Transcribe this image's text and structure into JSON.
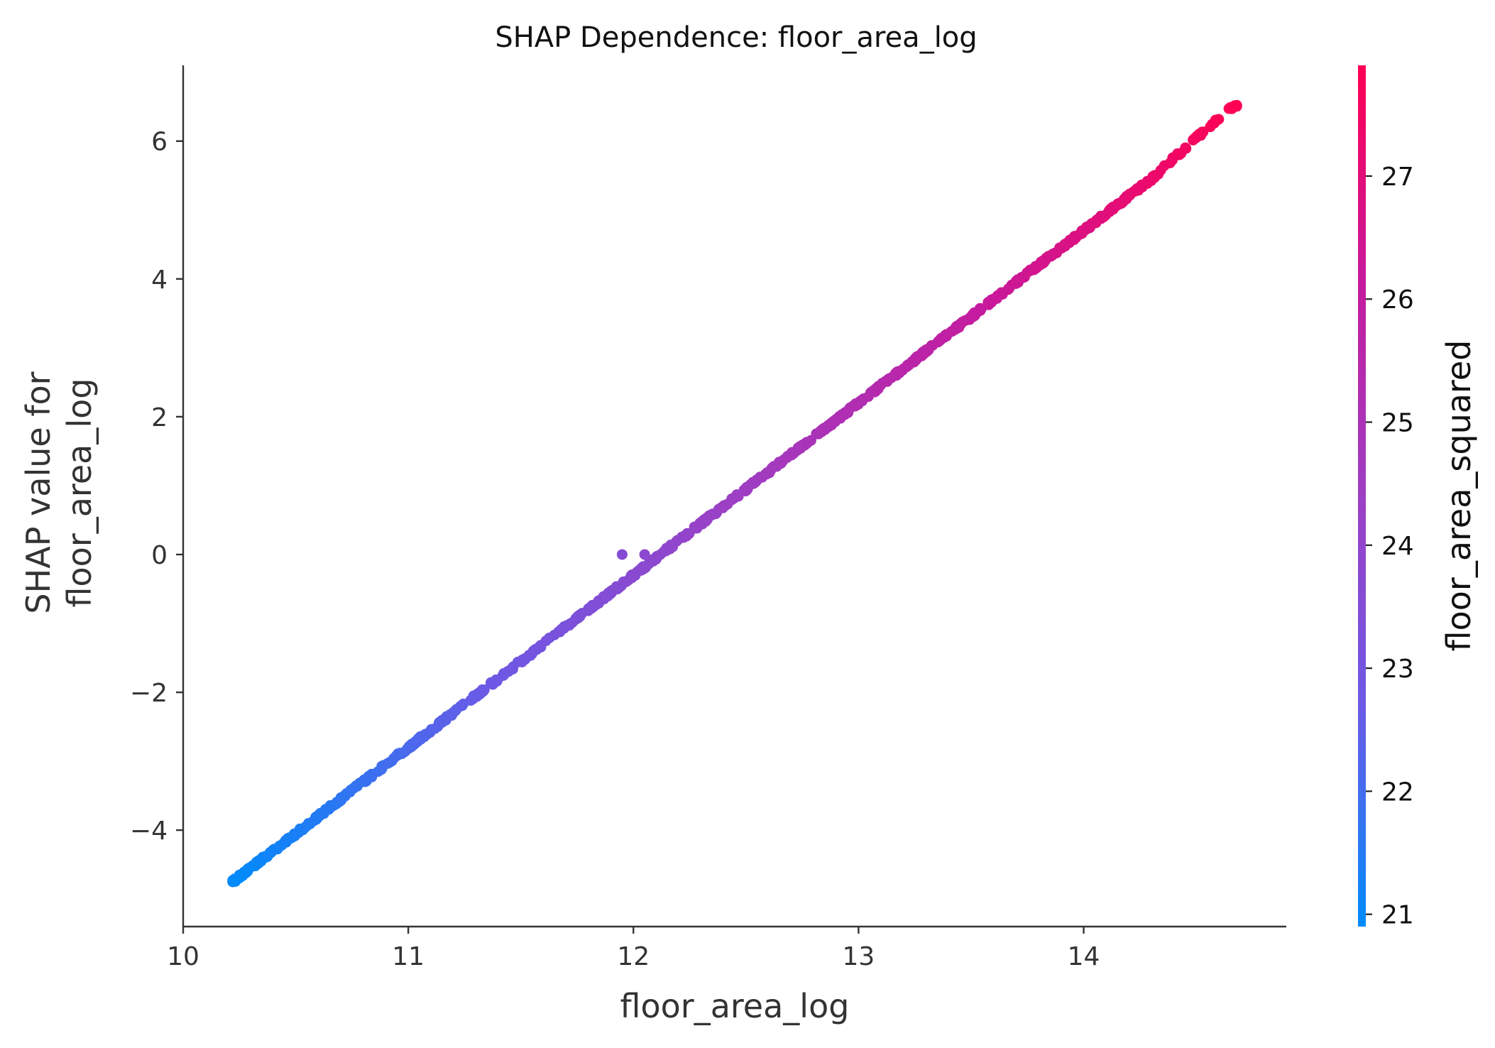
{
  "chart_data": {
    "type": "scatter",
    "title": "SHAP Dependence: floor_area_log",
    "xlabel": "floor_area_log",
    "ylabel_lines": [
      "SHAP value for",
      "floor_area_log"
    ],
    "xlim": [
      10.0,
      14.9
    ],
    "ylim": [
      -5.4,
      7.1
    ],
    "xticks": [
      10,
      11,
      12,
      13,
      14
    ],
    "xtick_labels": [
      "10",
      "11",
      "12",
      "13",
      "14"
    ],
    "yticks": [
      -4,
      -2,
      0,
      2,
      4,
      6
    ],
    "ytick_labels": [
      "−4",
      "−2",
      "0",
      "2",
      "4",
      "6"
    ],
    "grid": false,
    "series": [
      {
        "points_summary": "dense linear band of points from (10.22, -4.75) to (14.68, 6.52); points coloured by floor_area_squared",
        "trend": {
          "x_start": 10.22,
          "y_start": -4.75,
          "x_end": 14.68,
          "y_end": 6.52
        },
        "x": [
          10.22,
          10.3,
          10.4,
          10.5,
          10.6,
          10.7,
          10.8,
          10.9,
          11.0,
          11.1,
          11.2,
          11.3,
          11.4,
          11.5,
          11.6,
          11.7,
          11.8,
          11.9,
          12.0,
          12.1,
          12.2,
          12.3,
          12.4,
          12.5,
          12.6,
          12.7,
          12.8,
          12.9,
          13.0,
          13.1,
          13.2,
          13.3,
          13.4,
          13.5,
          13.6,
          13.7,
          13.8,
          13.9,
          14.0,
          14.1,
          14.2,
          14.3,
          14.4,
          14.52,
          14.64,
          14.68
        ],
        "y": [
          -4.75,
          -4.55,
          -4.3,
          -4.05,
          -3.8,
          -3.55,
          -3.3,
          -3.05,
          -2.8,
          -2.55,
          -2.3,
          -2.05,
          -1.8,
          -1.55,
          -1.3,
          -1.05,
          -0.8,
          -0.55,
          -0.3,
          -0.05,
          0.2,
          0.45,
          0.7,
          0.95,
          1.2,
          1.45,
          1.7,
          1.95,
          2.2,
          2.45,
          2.7,
          2.95,
          3.2,
          3.45,
          3.7,
          3.95,
          4.2,
          4.45,
          4.7,
          4.95,
          5.2,
          5.45,
          5.75,
          6.1,
          6.45,
          6.52
        ],
        "outliers": [
          {
            "x": 11.95,
            "y": 0.0
          },
          {
            "x": 12.05,
            "y": 0.0
          },
          {
            "x": 12.12,
            "y": 0.0
          }
        ]
      }
    ],
    "colorbar": {
      "label": "floor_area_squared",
      "range": [
        20.9,
        27.9
      ],
      "ticks": [
        21,
        22,
        23,
        24,
        25,
        26,
        27
      ],
      "tick_labels": [
        "21",
        "22",
        "23",
        "24",
        "25",
        "26",
        "27"
      ],
      "colormap_stops": [
        "#008bfb",
        "#6a5ae6",
        "#9d3fc4",
        "#c61a9d",
        "#ff0052"
      ]
    }
  }
}
